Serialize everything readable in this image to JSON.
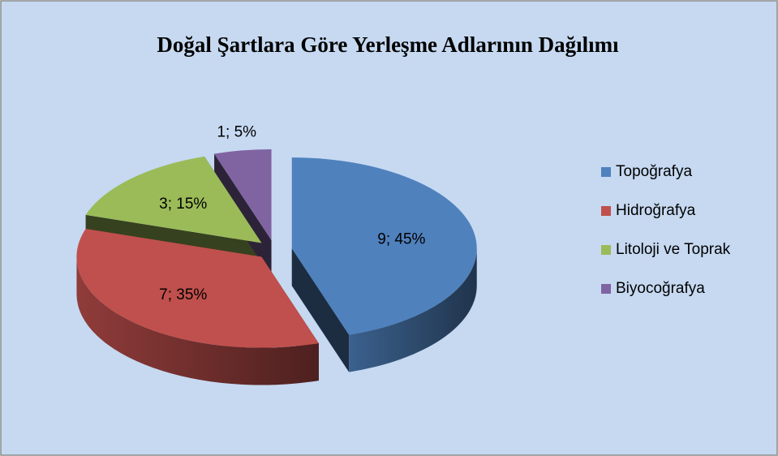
{
  "chart_data": {
    "type": "pie",
    "title": "Doğal Şartlara Göre Yerleşme Adlarının Dağılımı",
    "categories": [
      "Topoğrafya",
      "Hidroğrafya",
      "Litoloji ve Toprak",
      "Biyocoğrafya"
    ],
    "values": [
      9,
      7,
      3,
      1
    ],
    "value_labels": [
      "9; 45%",
      "7; 35%",
      "3; 15%",
      "1; 5%"
    ],
    "colors": [
      "#4f81bd",
      "#c0504d",
      "#9bbb59",
      "#8064a2"
    ],
    "legend": "right"
  }
}
